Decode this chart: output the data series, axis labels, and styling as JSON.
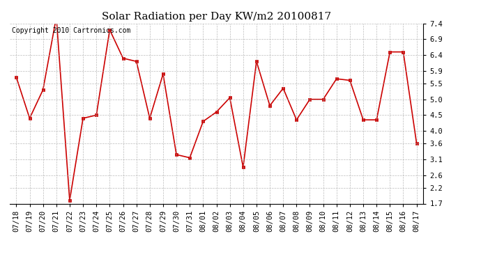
{
  "title": "Solar Radiation per Day KW/m2 20100817",
  "copyright_text": "Copyright 2010 Cartronics.com",
  "dates": [
    "07/18",
    "07/19",
    "07/20",
    "07/21",
    "07/22",
    "07/23",
    "07/24",
    "07/25",
    "07/26",
    "07/27",
    "07/28",
    "07/29",
    "07/30",
    "07/31",
    "08/01",
    "08/02",
    "08/03",
    "08/04",
    "08/05",
    "08/06",
    "08/07",
    "08/08",
    "08/09",
    "08/10",
    "08/11",
    "08/12",
    "08/13",
    "08/14",
    "08/15",
    "08/16",
    "08/17"
  ],
  "values": [
    5.7,
    4.4,
    5.3,
    7.6,
    1.8,
    4.4,
    4.5,
    7.2,
    6.3,
    6.2,
    4.4,
    5.8,
    3.25,
    3.15,
    4.3,
    4.6,
    5.05,
    2.85,
    6.2,
    4.8,
    5.35,
    4.35,
    5.0,
    5.0,
    5.65,
    5.6,
    4.35,
    4.35,
    6.5,
    6.5,
    3.6
  ],
  "ylim": [
    1.7,
    7.4
  ],
  "yticks": [
    1.7,
    2.2,
    2.6,
    3.1,
    3.6,
    4.0,
    4.5,
    5.0,
    5.5,
    5.9,
    6.4,
    6.9,
    7.4
  ],
  "line_color": "#cc0000",
  "marker_color": "#cc0000",
  "bg_color": "#ffffff",
  "grid_color": "#aaaaaa",
  "title_fontsize": 11,
  "copyright_fontsize": 7,
  "tick_fontsize": 7.5
}
